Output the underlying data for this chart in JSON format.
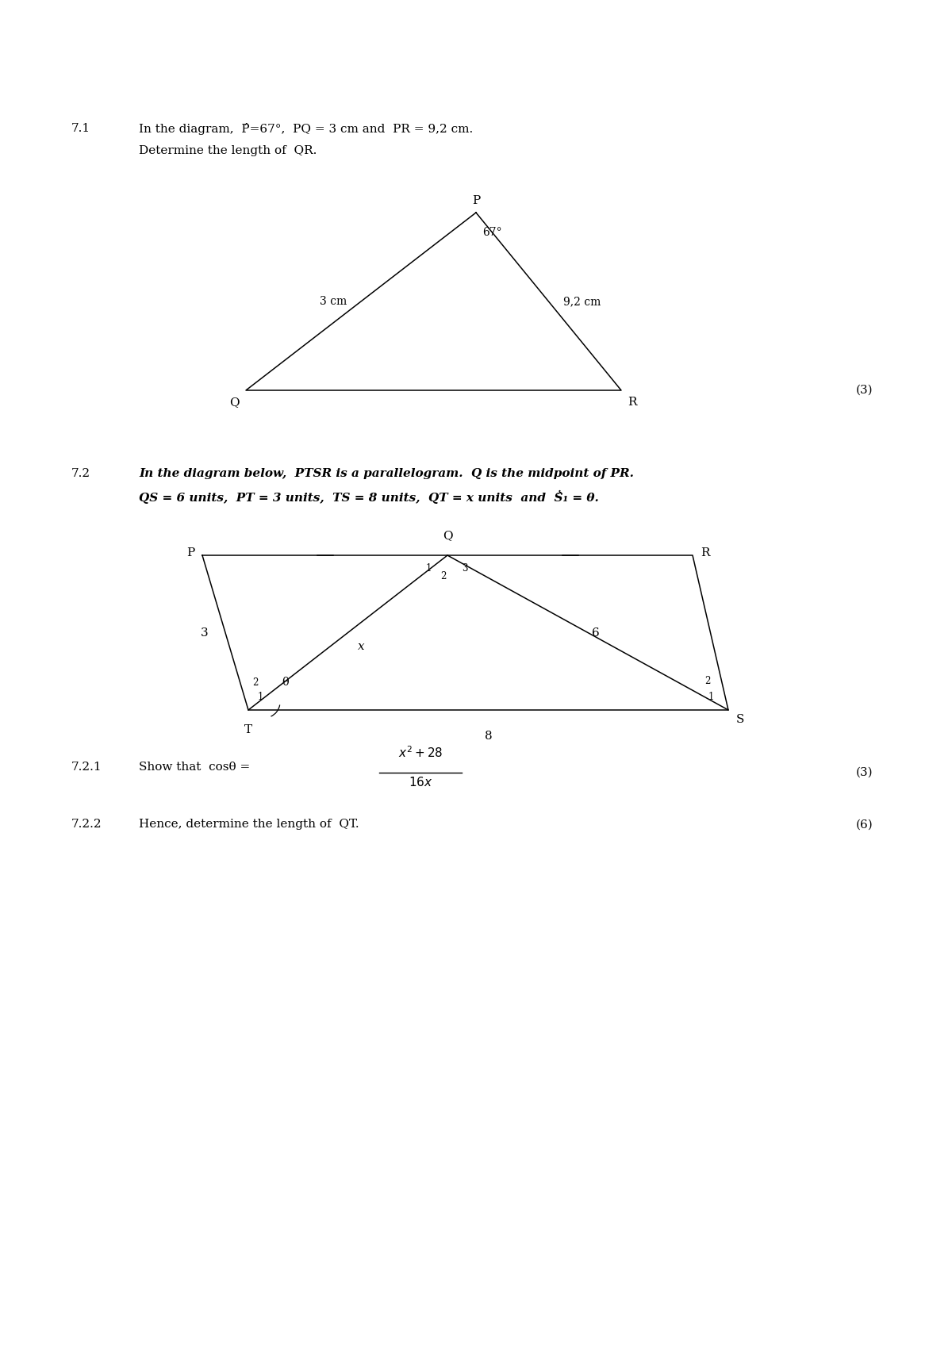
{
  "bg_color": "#ffffff",
  "page_width": 12.0,
  "page_height": 16.98,
  "q71_label": "7.1",
  "q71_text_line1": "In the diagram,  P̂=67°,  PQ = 3 cm and  PR = 9,2 cm.",
  "q71_text_line2": "Determine the length of  QR.",
  "tri_score": "(3)",
  "q72_label": "7.2",
  "q72_text_line1": "In the diagram below,  PTSR is a parallelogram.  Q is the midpoint of PR.",
  "q72_text_line2": "QS = 6 units,  PT = 3 units,  TS = 8 units,  QT = x units  and  Ṡ̂₁ = θ.",
  "q721_label": "7.2.1",
  "q721_text": "Show that  cosθ =",
  "q721_score": "(3)",
  "q722_label": "7.2.2",
  "q722_text": "Hence, determine the length of  QT.",
  "q722_score": "(6)"
}
